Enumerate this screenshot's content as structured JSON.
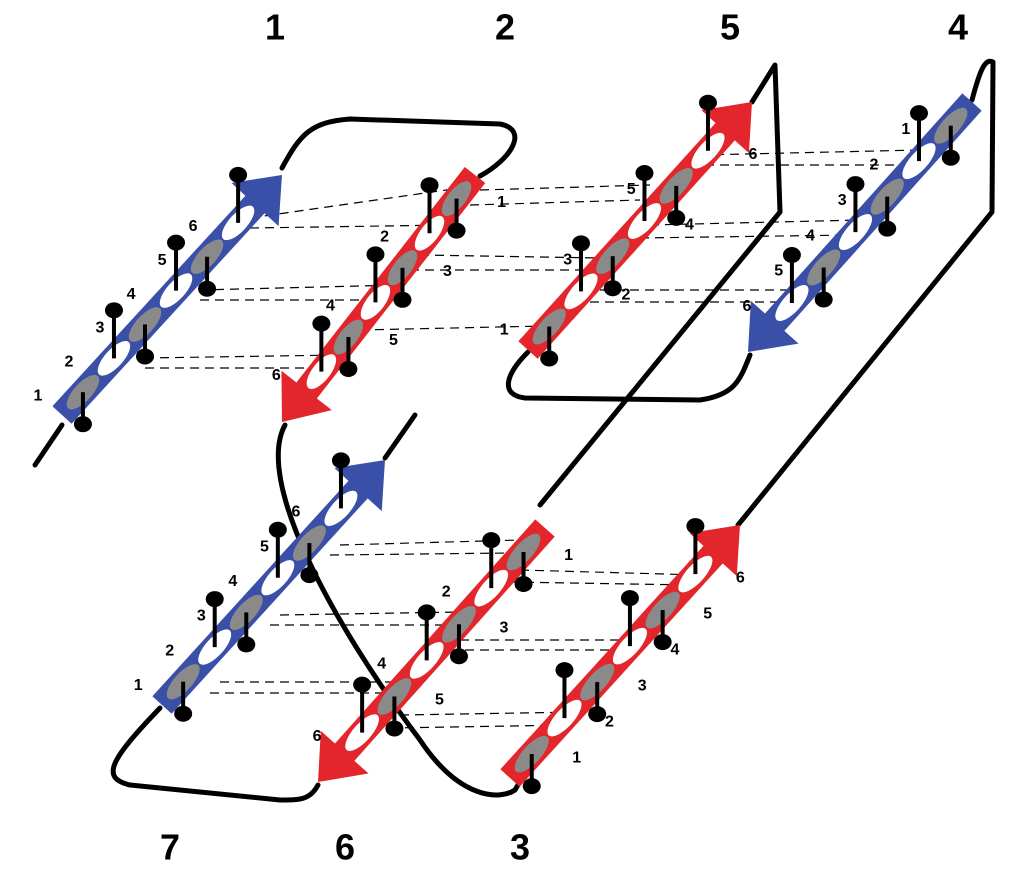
{
  "strands": [
    {
      "label": "1",
      "color": "#3a4fa8",
      "residues": [
        "1",
        "2",
        "3",
        "4",
        "5",
        "6"
      ]
    },
    {
      "label": "2",
      "color": "#e3262b",
      "residues": [
        "1",
        "2",
        "3",
        "4",
        "5",
        "6"
      ]
    },
    {
      "label": "5",
      "color": "#e3262b",
      "residues": [
        "1",
        "2",
        "3",
        "4",
        "5",
        "6"
      ]
    },
    {
      "label": "4",
      "color": "#3a4fa8",
      "residues": [
        "1",
        "2",
        "3",
        "4",
        "5",
        "6"
      ]
    },
    {
      "label": "7",
      "color": "#3a4fa8",
      "residues": [
        "1",
        "2",
        "3",
        "4",
        "5",
        "6"
      ]
    },
    {
      "label": "6",
      "color": "#e3262b",
      "residues": [
        "1",
        "2",
        "3",
        "4",
        "5",
        "6"
      ]
    },
    {
      "label": "3",
      "color": "#e3262b",
      "residues": [
        "1",
        "2",
        "3",
        "4",
        "5",
        "6"
      ]
    }
  ]
}
